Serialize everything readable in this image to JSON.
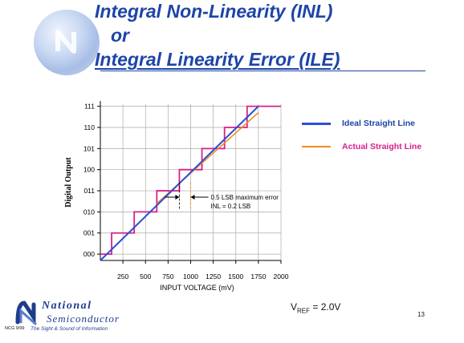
{
  "slide": {
    "title_line1": "Integral Non-Linearity (INL)",
    "title_line2": "or",
    "title_line3": "Integral Linearity Error (ILE)",
    "vref_label": "V",
    "vref_sub": "REF",
    "vref_value": " = 2.0V",
    "page_number": "13"
  },
  "legend": {
    "ideal_label": "Ideal Straight Line",
    "actual_label": "Actual Straight Line"
  },
  "footer": {
    "brand_line1": "National",
    "brand_line2": "Semiconductor",
    "code": "NCG 9/99",
    "tagline": "The Sight & Sound of Information"
  },
  "chart_data": {
    "type": "line",
    "xlabel": "INPUT VOLTAGE (mV)",
    "ylabel": "Digital Output",
    "x_ticks": [
      250,
      500,
      750,
      1000,
      1250,
      1500,
      1750,
      2000
    ],
    "y_ticks": [
      "000",
      "001",
      "010",
      "011",
      "100",
      "101",
      "110",
      "111"
    ],
    "xlim": [
      0,
      2000
    ],
    "ylim": [
      -0.3,
      7.1
    ],
    "grid": true,
    "legend_position": "right",
    "annotation": {
      "line1": "0.5 LSB maximum error",
      "line2": "INL = 0.2 LSB",
      "error_x": [
        875,
        1000
      ],
      "error_y_bottom": 2.1,
      "error_y_top": 3.4,
      "arrow_y": 2.7
    },
    "series": [
      {
        "name": "Ideal Straight Line",
        "x": [
          0,
          1750
        ],
        "y": [
          -0.3,
          7.0
        ]
      },
      {
        "name": "Actual Straight Line",
        "x": [
          625,
          1750
        ],
        "y": [
          2.4,
          6.7
        ]
      },
      {
        "name": "",
        "x": [
          0,
          125,
          125,
          375,
          375,
          625,
          625,
          875,
          875,
          1125,
          1125,
          1375,
          1375,
          1625,
          1625,
          2000
        ],
        "y": [
          0,
          0,
          1,
          1,
          2,
          2,
          3,
          3,
          4,
          4,
          5,
          5,
          6,
          6,
          7,
          7
        ]
      }
    ],
    "colors": {
      "ideal": "#2b4fd6",
      "actual": "#f08c1c",
      "staircase": "#d8208a",
      "grid": "#aaaaaa"
    }
  }
}
